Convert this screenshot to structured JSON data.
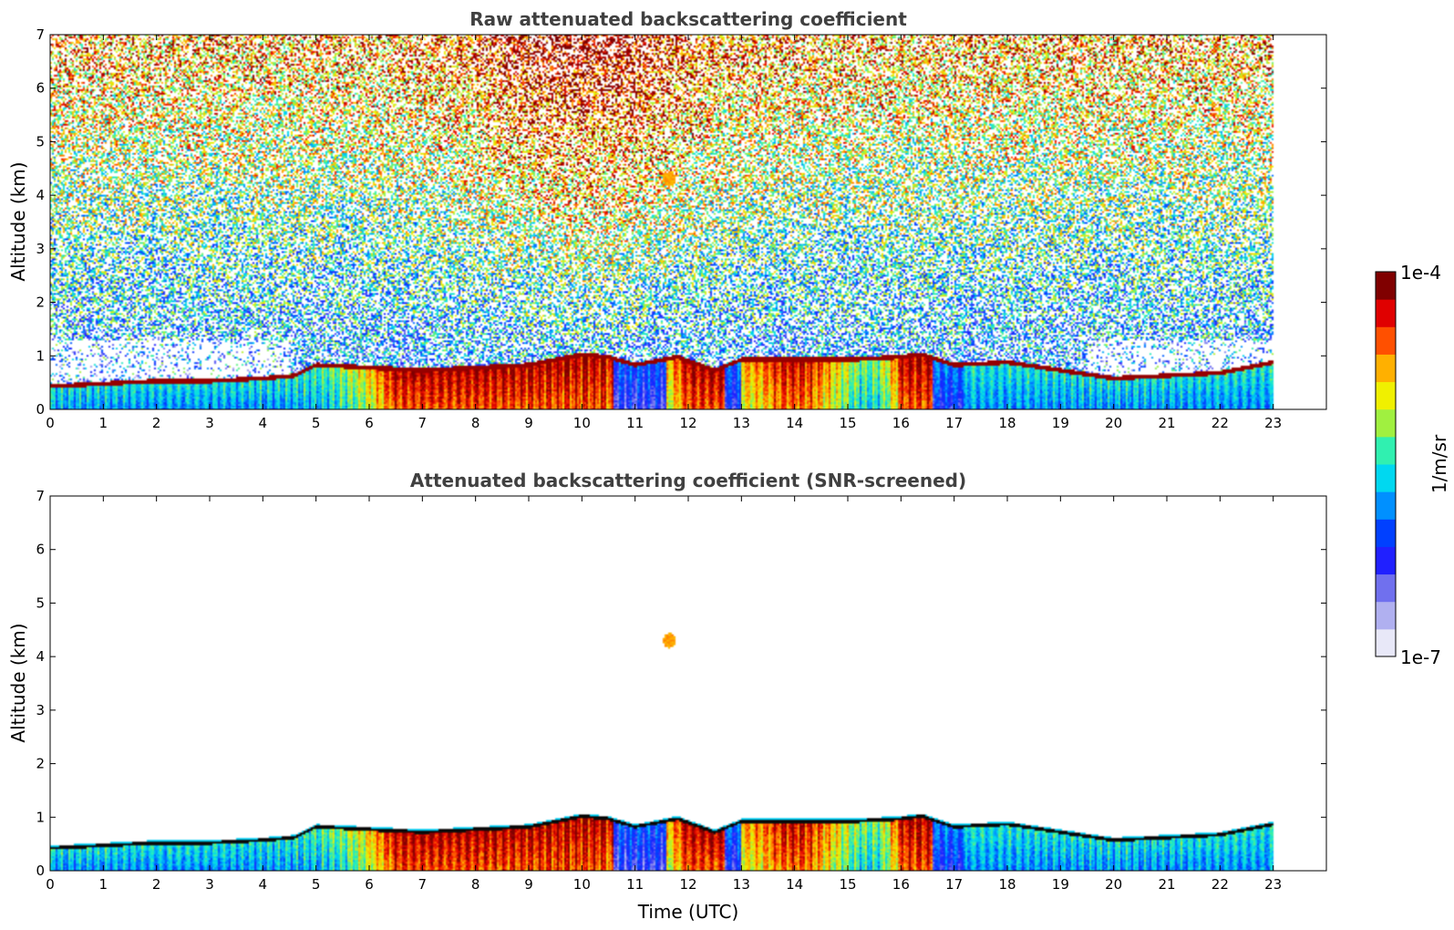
{
  "chart_data": [
    {
      "type": "heatmap",
      "title": "Raw attenuated backscattering coefficient",
      "xlabel": "",
      "ylabel": "Altitude (km)",
      "xlim": [
        0,
        24
      ],
      "ylim": [
        0,
        7
      ],
      "x_ticks": [
        0,
        1,
        2,
        3,
        4,
        5,
        6,
        7,
        8,
        9,
        10,
        11,
        12,
        13,
        14,
        15,
        16,
        17,
        18,
        19,
        20,
        21,
        22,
        23
      ],
      "y_ticks": [
        0,
        1,
        2,
        3,
        4,
        5,
        6,
        7
      ],
      "data_extent_hours": [
        0,
        23
      ],
      "noise": true,
      "cloud_patch": {
        "time": 11.65,
        "altitude_km": 4.3
      },
      "layer_top_km": [
        [
          0,
          0.45
        ],
        [
          1,
          0.5
        ],
        [
          2,
          0.55
        ],
        [
          3,
          0.55
        ],
        [
          4,
          0.6
        ],
        [
          4.6,
          0.65
        ],
        [
          5,
          0.85
        ],
        [
          6,
          0.8
        ],
        [
          7,
          0.75
        ],
        [
          8,
          0.8
        ],
        [
          9,
          0.85
        ],
        [
          10,
          1.05
        ],
        [
          10.5,
          1.0
        ],
        [
          11,
          0.85
        ],
        [
          11.8,
          1.0
        ],
        [
          12.5,
          0.75
        ],
        [
          13,
          0.95
        ],
        [
          14,
          0.95
        ],
        [
          15,
          0.95
        ],
        [
          16,
          1.0
        ],
        [
          16.4,
          1.05
        ],
        [
          17,
          0.85
        ],
        [
          18,
          0.9
        ],
        [
          19,
          0.75
        ],
        [
          20,
          0.6
        ],
        [
          21,
          0.65
        ],
        [
          22,
          0.7
        ],
        [
          23,
          0.9
        ]
      ]
    },
    {
      "type": "heatmap",
      "title": "Attenuated backscattering coefficient (SNR-screened)",
      "xlabel": "Time (UTC)",
      "ylabel": "Altitude (km)",
      "xlim": [
        0,
        24
      ],
      "ylim": [
        0,
        7
      ],
      "x_ticks": [
        0,
        1,
        2,
        3,
        4,
        5,
        6,
        7,
        8,
        9,
        10,
        11,
        12,
        13,
        14,
        15,
        16,
        17,
        18,
        19,
        20,
        21,
        22,
        23
      ],
      "y_ticks": [
        0,
        1,
        2,
        3,
        4,
        5,
        6,
        7
      ],
      "data_extent_hours": [
        0,
        23
      ],
      "noise": false,
      "cloud_patch": {
        "time": 11.65,
        "altitude_km": 4.3
      },
      "layer_top_km": [
        [
          0,
          0.45
        ],
        [
          1,
          0.5
        ],
        [
          2,
          0.55
        ],
        [
          3,
          0.55
        ],
        [
          4,
          0.6
        ],
        [
          4.6,
          0.65
        ],
        [
          5,
          0.85
        ],
        [
          6,
          0.8
        ],
        [
          7,
          0.75
        ],
        [
          8,
          0.8
        ],
        [
          9,
          0.85
        ],
        [
          10,
          1.05
        ],
        [
          10.5,
          1.0
        ],
        [
          11,
          0.85
        ],
        [
          11.8,
          1.0
        ],
        [
          12.5,
          0.75
        ],
        [
          13,
          0.95
        ],
        [
          14,
          0.95
        ],
        [
          15,
          0.95
        ],
        [
          16,
          1.0
        ],
        [
          16.4,
          1.05
        ],
        [
          17,
          0.85
        ],
        [
          18,
          0.9
        ],
        [
          19,
          0.75
        ],
        [
          20,
          0.6
        ],
        [
          21,
          0.65
        ],
        [
          22,
          0.7
        ],
        [
          23,
          0.9
        ]
      ]
    }
  ],
  "colorbar": {
    "label": "1/m/sr",
    "min_label": "1e-7",
    "max_label": "1e-4",
    "min": 1e-07,
    "max": 0.0001,
    "scale": "log",
    "colormap": "jet",
    "colors": [
      "#e8e8f8",
      "#b0b0f0",
      "#7070ee",
      "#2020ff",
      "#0040ff",
      "#0090ff",
      "#00d8f0",
      "#30f0b0",
      "#a0f040",
      "#f0f000",
      "#ffb000",
      "#ff5000",
      "#e00000",
      "#800000"
    ]
  }
}
